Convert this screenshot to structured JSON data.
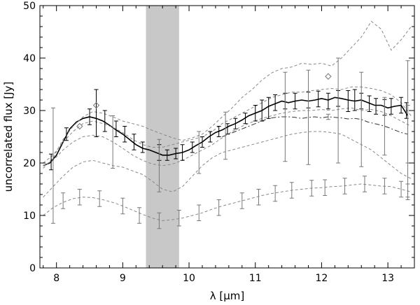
{
  "chart_data": {
    "type": "line",
    "xlabel": "λ [μm]",
    "ylabel": "uncorrelated flux [Jy]",
    "xlim": [
      7.75,
      13.4
    ],
    "ylim": [
      0,
      50
    ],
    "x_ticks": [
      8,
      9,
      10,
      11,
      12,
      13
    ],
    "y_ticks": [
      0,
      10,
      20,
      30,
      40,
      50
    ],
    "grid": false,
    "shaded_band": {
      "x_start": 9.35,
      "x_end": 9.85,
      "color": "#c8c8c8"
    },
    "series": [
      {
        "style": "solid",
        "color": "#000000",
        "x": [
          7.8,
          7.9,
          8.0,
          8.1,
          8.2,
          8.3,
          8.4,
          8.5,
          8.6,
          8.7,
          8.8,
          8.9,
          9.0,
          9.1,
          9.2,
          9.3,
          9.4,
          9.5,
          9.6,
          9.7,
          9.8,
          9.9,
          10.0,
          10.1,
          10.2,
          10.3,
          10.4,
          10.5,
          10.6,
          10.7,
          10.8,
          10.9,
          11.0,
          11.1,
          11.2,
          11.3,
          11.4,
          11.5,
          11.6,
          11.7,
          11.8,
          11.9,
          12.0,
          12.1,
          12.2,
          12.3,
          12.4,
          12.5,
          12.6,
          12.7,
          12.8,
          12.9,
          13.0,
          13.1,
          13.2,
          13.3
        ],
        "y": [
          19.5,
          20.0,
          21.5,
          24.0,
          26.5,
          27.8,
          28.5,
          28.8,
          28.5,
          28.0,
          27.2,
          26.3,
          25.5,
          24.5,
          23.5,
          22.8,
          22.5,
          22.0,
          21.5,
          21.5,
          21.8,
          22.0,
          22.5,
          23.3,
          24.0,
          25.0,
          25.8,
          26.3,
          27.0,
          27.5,
          28.2,
          29.0,
          29.5,
          30.0,
          30.8,
          31.3,
          31.8,
          31.5,
          31.8,
          32.0,
          31.8,
          32.0,
          32.3,
          32.0,
          32.5,
          32.3,
          32.0,
          31.8,
          32.0,
          31.5,
          31.0,
          31.0,
          30.5,
          30.8,
          31.0,
          29.0
        ],
        "error_bars": [
          {
            "x": 7.92,
            "y": 20.2,
            "err": 1.5
          },
          {
            "x": 8.15,
            "y": 25.5,
            "err": 1.2
          },
          {
            "x": 8.5,
            "y": 28.8,
            "err": 1.5
          },
          {
            "x": 8.6,
            "y": 29.5,
            "err": 4.5
          },
          {
            "x": 8.73,
            "y": 28.0,
            "err": 2.0
          },
          {
            "x": 8.9,
            "y": 26.5,
            "err": 1.5
          },
          {
            "x": 9.03,
            "y": 25.5,
            "err": 1.5
          },
          {
            "x": 9.17,
            "y": 24.0,
            "err": 1.5
          },
          {
            "x": 9.3,
            "y": 23.0,
            "err": 1.0
          },
          {
            "x": 9.55,
            "y": 22.0,
            "err": 1.5
          },
          {
            "x": 9.67,
            "y": 21.5,
            "err": 1.0
          },
          {
            "x": 9.8,
            "y": 21.8,
            "err": 1.0
          },
          {
            "x": 9.9,
            "y": 22.0,
            "err": 1.5
          },
          {
            "x": 10.05,
            "y": 23.0,
            "err": 1.0
          },
          {
            "x": 10.2,
            "y": 24.0,
            "err": 1.0
          },
          {
            "x": 10.32,
            "y": 25.0,
            "err": 1.0
          },
          {
            "x": 10.45,
            "y": 26.0,
            "err": 1.0
          },
          {
            "x": 10.58,
            "y": 26.5,
            "err": 1.0
          },
          {
            "x": 10.7,
            "y": 27.5,
            "err": 1.0
          },
          {
            "x": 10.85,
            "y": 28.5,
            "err": 1.0
          },
          {
            "x": 11.0,
            "y": 29.5,
            "err": 1.5
          },
          {
            "x": 11.1,
            "y": 30.0,
            "err": 2.0
          },
          {
            "x": 11.2,
            "y": 30.5,
            "err": 2.0
          },
          {
            "x": 11.3,
            "y": 31.5,
            "err": 1.5
          },
          {
            "x": 11.45,
            "y": 31.8,
            "err": 1.5
          },
          {
            "x": 11.6,
            "y": 31.8,
            "err": 1.5
          },
          {
            "x": 11.8,
            "y": 32.0,
            "err": 1.5
          },
          {
            "x": 11.95,
            "y": 32.2,
            "err": 1.5
          },
          {
            "x": 12.1,
            "y": 31.8,
            "err": 1.5
          },
          {
            "x": 12.25,
            "y": 32.3,
            "err": 1.5
          },
          {
            "x": 12.4,
            "y": 31.8,
            "err": 2.0
          },
          {
            "x": 12.5,
            "y": 32.0,
            "err": 2.0
          },
          {
            "x": 12.6,
            "y": 31.8,
            "err": 1.5
          },
          {
            "x": 12.72,
            "y": 31.3,
            "err": 1.5
          },
          {
            "x": 12.82,
            "y": 30.8,
            "err": 1.5
          },
          {
            "x": 12.95,
            "y": 30.6,
            "err": 1.5
          },
          {
            "x": 13.05,
            "y": 30.8,
            "err": 1.5
          },
          {
            "x": 13.2,
            "y": 31.0,
            "err": 1.5
          },
          {
            "x": 13.28,
            "y": 30.0,
            "err": 1.5
          }
        ]
      },
      {
        "style": "dashdot",
        "color": "#333333",
        "x": [
          10.5,
          10.6,
          10.7,
          10.8,
          10.9,
          11.0,
          11.1,
          11.2,
          11.3,
          11.4,
          11.5,
          11.6,
          11.7,
          11.8,
          11.9,
          12.0,
          12.1,
          12.2,
          12.3,
          12.4,
          12.5,
          12.6,
          12.7,
          12.8,
          12.9,
          13.0,
          13.1,
          13.2,
          13.3
        ],
        "y": [
          25.0,
          25.5,
          26.0,
          26.5,
          27.0,
          27.5,
          28.0,
          28.5,
          28.7,
          28.8,
          28.8,
          28.7,
          28.5,
          28.7,
          28.8,
          28.6,
          28.8,
          28.7,
          28.6,
          28.4,
          28.5,
          28.3,
          27.8,
          27.5,
          27.2,
          26.8,
          26.3,
          25.8,
          25.5
        ],
        "error_bars": [
          {
            "x": 10.55,
            "y": 25.2,
            "err": 4.5
          },
          {
            "x": 11.45,
            "y": 28.8,
            "err": 8.5
          },
          {
            "x": 11.8,
            "y": 28.7,
            "err": 9.0
          },
          {
            "x": 12.1,
            "y": 28.8,
            "err": 0.5
          },
          {
            "x": 12.6,
            "y": 28.3,
            "err": 9.0
          },
          {
            "x": 12.95,
            "y": 27.0,
            "err": 5.5
          },
          {
            "x": 13.3,
            "y": 25.5,
            "err": 5.5
          }
        ]
      },
      {
        "style": "dashed",
        "color": "#888888",
        "x": [
          7.8,
          7.95,
          8.1,
          8.25,
          8.4,
          8.55,
          8.7,
          8.85,
          9.0,
          9.15,
          9.3,
          9.45,
          9.6,
          9.75,
          9.9,
          10.05,
          10.2,
          10.35,
          10.5,
          10.65,
          10.8,
          10.95,
          11.1,
          11.25,
          11.4,
          11.55,
          11.7,
          11.85,
          12.0,
          12.15,
          12.3,
          12.45,
          12.6,
          12.75,
          12.9,
          13.05,
          13.2,
          13.35
        ],
        "y": [
          19.0,
          21.0,
          24.5,
          27.0,
          28.8,
          29.8,
          29.5,
          28.8,
          28.0,
          27.5,
          27.0,
          26.2,
          25.5,
          24.8,
          24.3,
          24.8,
          25.5,
          27.0,
          28.8,
          30.5,
          32.5,
          34.0,
          35.8,
          37.2,
          38.0,
          38.3,
          39.0,
          38.8,
          39.0,
          38.5,
          40.0,
          42.0,
          44.0,
          47.0,
          45.5,
          41.5,
          43.5,
          46.0
        ]
      },
      {
        "style": "dashed",
        "color": "#888888",
        "x": [
          7.8,
          7.95,
          8.1,
          8.25,
          8.4,
          8.55,
          8.7,
          8.85,
          9.0,
          9.15,
          9.3,
          9.45,
          9.6,
          9.75,
          9.9,
          10.05,
          10.2,
          10.35,
          10.5,
          10.65,
          10.8,
          10.95,
          11.1,
          11.25,
          11.4,
          11.55,
          11.7,
          11.85,
          12.0,
          12.15,
          12.3,
          12.45,
          12.6,
          12.75,
          12.9,
          13.05,
          13.2,
          13.35
        ],
        "y": [
          20.0,
          21.5,
          24.0,
          26.0,
          27.5,
          28.0,
          27.5,
          26.8,
          25.8,
          24.5,
          23.5,
          23.0,
          23.0,
          23.5,
          24.0,
          24.5,
          25.0,
          26.0,
          27.5,
          28.5,
          29.5,
          30.5,
          31.5,
          32.5,
          33.0,
          33.5,
          33.5,
          33.8,
          34.0,
          34.2,
          34.0,
          34.5,
          34.5,
          34.2,
          33.8,
          33.0,
          31.5,
          29.0
        ]
      },
      {
        "style": "dashed",
        "color": "#888888",
        "x": [
          7.8,
          7.95,
          8.1,
          8.25,
          8.4,
          8.55,
          8.7,
          8.85,
          9.0,
          9.15,
          9.3,
          9.45,
          9.6,
          9.75,
          9.9,
          10.05,
          10.2,
          10.35,
          10.5,
          10.65,
          10.8,
          10.95,
          11.1,
          11.25,
          11.4,
          11.55,
          11.7,
          11.85,
          12.0,
          12.15,
          12.3,
          12.45,
          12.6,
          12.75,
          12.9,
          13.05,
          13.2,
          13.35
        ],
        "y": [
          19.5,
          20.5,
          22.5,
          24.0,
          25.0,
          25.3,
          25.0,
          24.0,
          22.8,
          21.5,
          20.5,
          19.8,
          19.5,
          19.8,
          20.5,
          21.5,
          22.5,
          23.5,
          24.8,
          26.0,
          27.0,
          27.8,
          28.5,
          29.0,
          29.5,
          29.8,
          30.0,
          30.0,
          30.2,
          30.0,
          30.3,
          30.5,
          30.0,
          30.2,
          29.8,
          29.0,
          28.0,
          27.0
        ],
        "error_bars": [
          {
            "x": 7.95,
            "y": 19.5,
            "err": 11.0
          },
          {
            "x": 8.85,
            "y": 24.0,
            "err": 5.0
          },
          {
            "x": 9.55,
            "y": 19.5,
            "err": 5.0
          },
          {
            "x": 10.15,
            "y": 22.0,
            "err": 4.0
          },
          {
            "x": 12.25,
            "y": 30.0,
            "err": 10.0
          },
          {
            "x": 13.3,
            "y": 26.5,
            "err": 13.0
          }
        ]
      },
      {
        "style": "dashed",
        "color": "#888888",
        "x": [
          7.8,
          7.95,
          8.1,
          8.25,
          8.4,
          8.55,
          8.7,
          8.85,
          9.0,
          9.15,
          9.3,
          9.45,
          9.6,
          9.75,
          9.9,
          10.05,
          10.2,
          10.35,
          10.5,
          10.65,
          10.8,
          10.95,
          11.1,
          11.25,
          11.4,
          11.55,
          11.7,
          11.85,
          12.0,
          12.15,
          12.3,
          12.45,
          12.6,
          12.75,
          12.9,
          13.05,
          13.2,
          13.35
        ],
        "y": [
          13.5,
          15.5,
          17.5,
          19.2,
          20.2,
          20.5,
          20.0,
          19.5,
          19.2,
          18.5,
          17.8,
          16.5,
          15.0,
          14.5,
          15.5,
          17.5,
          19.5,
          21.0,
          22.0,
          22.5,
          23.0,
          23.5,
          24.0,
          24.5,
          25.0,
          25.5,
          25.8,
          26.0,
          26.0,
          25.8,
          25.5,
          24.5,
          23.5,
          22.5,
          21.0,
          19.5,
          18.0,
          17.0
        ]
      },
      {
        "style": "dashed",
        "color": "#888888",
        "x": [
          7.8,
          7.95,
          8.1,
          8.25,
          8.4,
          8.55,
          8.7,
          8.85,
          9.0,
          9.15,
          9.3,
          9.45,
          9.6,
          9.75,
          9.9,
          10.05,
          10.2,
          10.35,
          10.5,
          10.65,
          10.8,
          10.95,
          11.1,
          11.25,
          11.4,
          11.55,
          11.7,
          11.85,
          12.0,
          12.15,
          12.3,
          12.45,
          12.6,
          12.75,
          12.9,
          13.05,
          13.2,
          13.35
        ],
        "y": [
          10.0,
          11.5,
          12.5,
          13.2,
          13.5,
          13.4,
          13.0,
          12.5,
          11.8,
          11.0,
          10.2,
          9.5,
          9.0,
          9.2,
          9.5,
          10.0,
          10.5,
          11.2,
          11.8,
          12.3,
          12.8,
          13.3,
          13.8,
          14.2,
          14.5,
          14.8,
          15.0,
          15.2,
          15.3,
          15.5,
          15.6,
          15.8,
          16.0,
          15.8,
          15.6,
          15.5,
          15.0,
          14.5
        ],
        "error_bars": [
          {
            "x": 8.1,
            "y": 12.8,
            "err": 1.5
          },
          {
            "x": 8.35,
            "y": 13.5,
            "err": 1.5
          },
          {
            "x": 8.65,
            "y": 13.2,
            "err": 1.5
          },
          {
            "x": 9.0,
            "y": 11.8,
            "err": 1.5
          },
          {
            "x": 9.25,
            "y": 10.0,
            "err": 1.5
          },
          {
            "x": 9.55,
            "y": 9.0,
            "err": 1.5
          },
          {
            "x": 9.85,
            "y": 9.5,
            "err": 1.5
          },
          {
            "x": 10.15,
            "y": 10.5,
            "err": 1.5
          },
          {
            "x": 10.45,
            "y": 11.5,
            "err": 1.5
          },
          {
            "x": 10.8,
            "y": 12.8,
            "err": 1.5
          },
          {
            "x": 11.05,
            "y": 13.5,
            "err": 1.5
          },
          {
            "x": 11.3,
            "y": 14.2,
            "err": 1.5
          },
          {
            "x": 11.55,
            "y": 14.8,
            "err": 1.5
          },
          {
            "x": 11.85,
            "y": 15.2,
            "err": 1.5
          },
          {
            "x": 12.05,
            "y": 15.3,
            "err": 1.5
          },
          {
            "x": 12.35,
            "y": 15.6,
            "err": 1.5
          },
          {
            "x": 12.65,
            "y": 16.0,
            "err": 1.5
          },
          {
            "x": 12.95,
            "y": 15.6,
            "err": 1.5
          },
          {
            "x": 13.2,
            "y": 15.0,
            "err": 1.5
          },
          {
            "x": 13.3,
            "y": 14.5,
            "err": 1.5
          }
        ]
      }
    ],
    "markers": [
      {
        "x": 8.35,
        "y": 27.0,
        "shape": "diamond"
      },
      {
        "x": 8.6,
        "y": 31.0,
        "shape": "diamond"
      },
      {
        "x": 12.1,
        "y": 36.5,
        "shape": "diamond"
      }
    ]
  }
}
